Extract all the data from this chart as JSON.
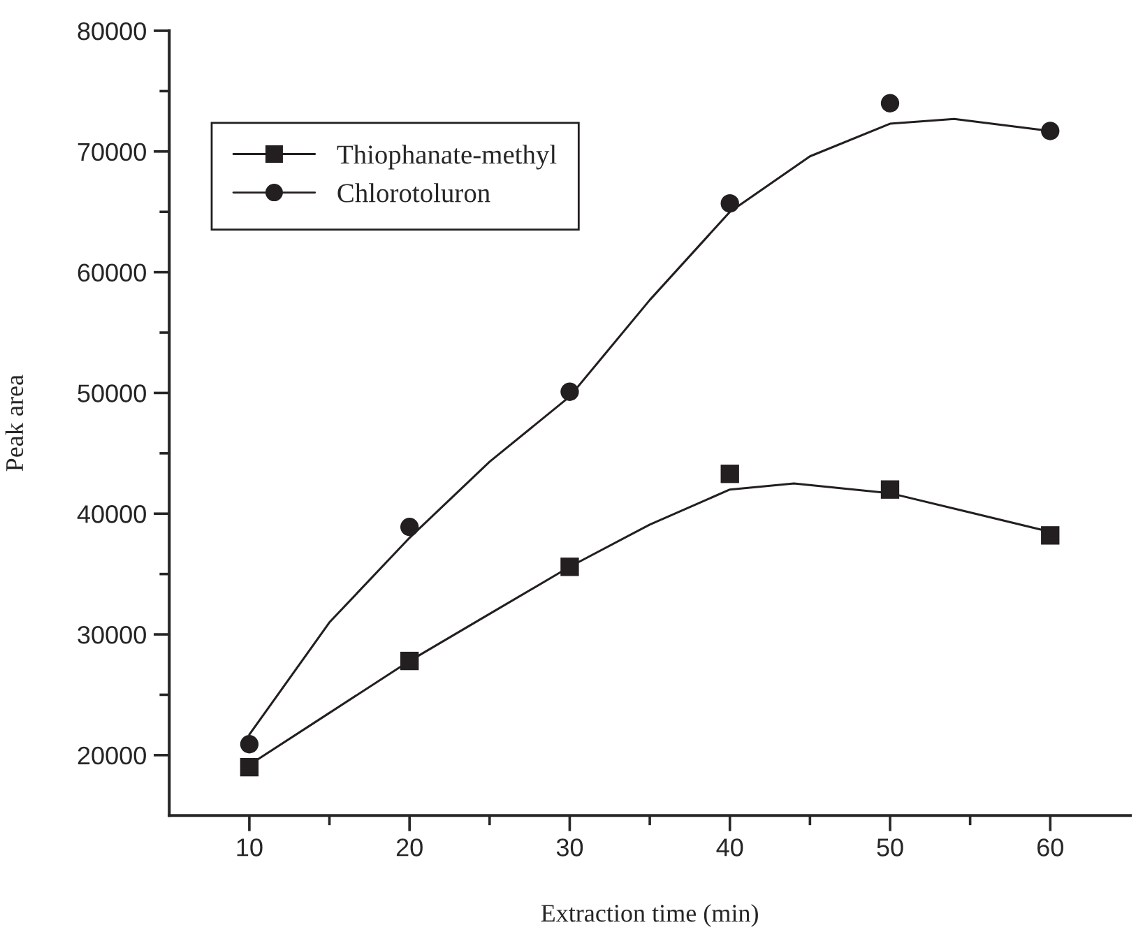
{
  "chart_data": {
    "type": "scatter",
    "xlabel": "Extraction time (min)",
    "ylabel": "Peak area",
    "xlim": [
      5,
      65
    ],
    "ylim": [
      15000,
      80000
    ],
    "xticks": [
      10,
      {
        "value": 15,
        "label": null
      },
      20,
      {
        "value": 25,
        "label": null
      },
      30,
      {
        "value": 35,
        "label": null
      },
      40,
      {
        "value": 45,
        "label": null
      },
      50,
      {
        "value": 55,
        "label": null
      },
      60
    ],
    "yticks": [
      20000,
      {
        "value": 25000,
        "label": null
      },
      30000,
      {
        "value": 35000,
        "label": null
      },
      40000,
      {
        "value": 45000,
        "label": null
      },
      50000,
      {
        "value": 55000,
        "label": null
      },
      60000,
      {
        "value": 65000,
        "label": null
      },
      70000,
      {
        "value": 75000,
        "label": null
      },
      80000
    ],
    "x": [
      10,
      20,
      30,
      40,
      50,
      60
    ],
    "grid": false,
    "legend": "top left",
    "series": [
      {
        "name": "Thiophanate-methyl",
        "color": "#231f20",
        "marker": "square",
        "values": [
          19000,
          27800,
          35600,
          43300,
          42000,
          38200
        ]
      },
      {
        "name": "Chlorotoluron",
        "color": "#231f20",
        "marker": "circle",
        "values": [
          20900,
          38900,
          50100,
          65700,
          74000,
          71700
        ]
      },
      {
        "type": "line",
        "color": "#231f20",
        "marker": "none",
        "line_style": "solid",
        "x": [
          10,
          15,
          20,
          25,
          30,
          35,
          40,
          44,
          50,
          55,
          60
        ],
        "values": [
          19200,
          23500,
          27800,
          31700,
          35600,
          39100,
          42000,
          42500,
          41700,
          40100,
          38500
        ]
      },
      {
        "type": "line",
        "color": "#231f20",
        "marker": "none",
        "line_style": "solid",
        "x": [
          10,
          15,
          20,
          25,
          30,
          35,
          40,
          45,
          50,
          54,
          60
        ],
        "values": [
          21700,
          31000,
          38000,
          44300,
          49700,
          57700,
          65000,
          69600,
          72300,
          72700,
          71700
        ]
      }
    ]
  }
}
